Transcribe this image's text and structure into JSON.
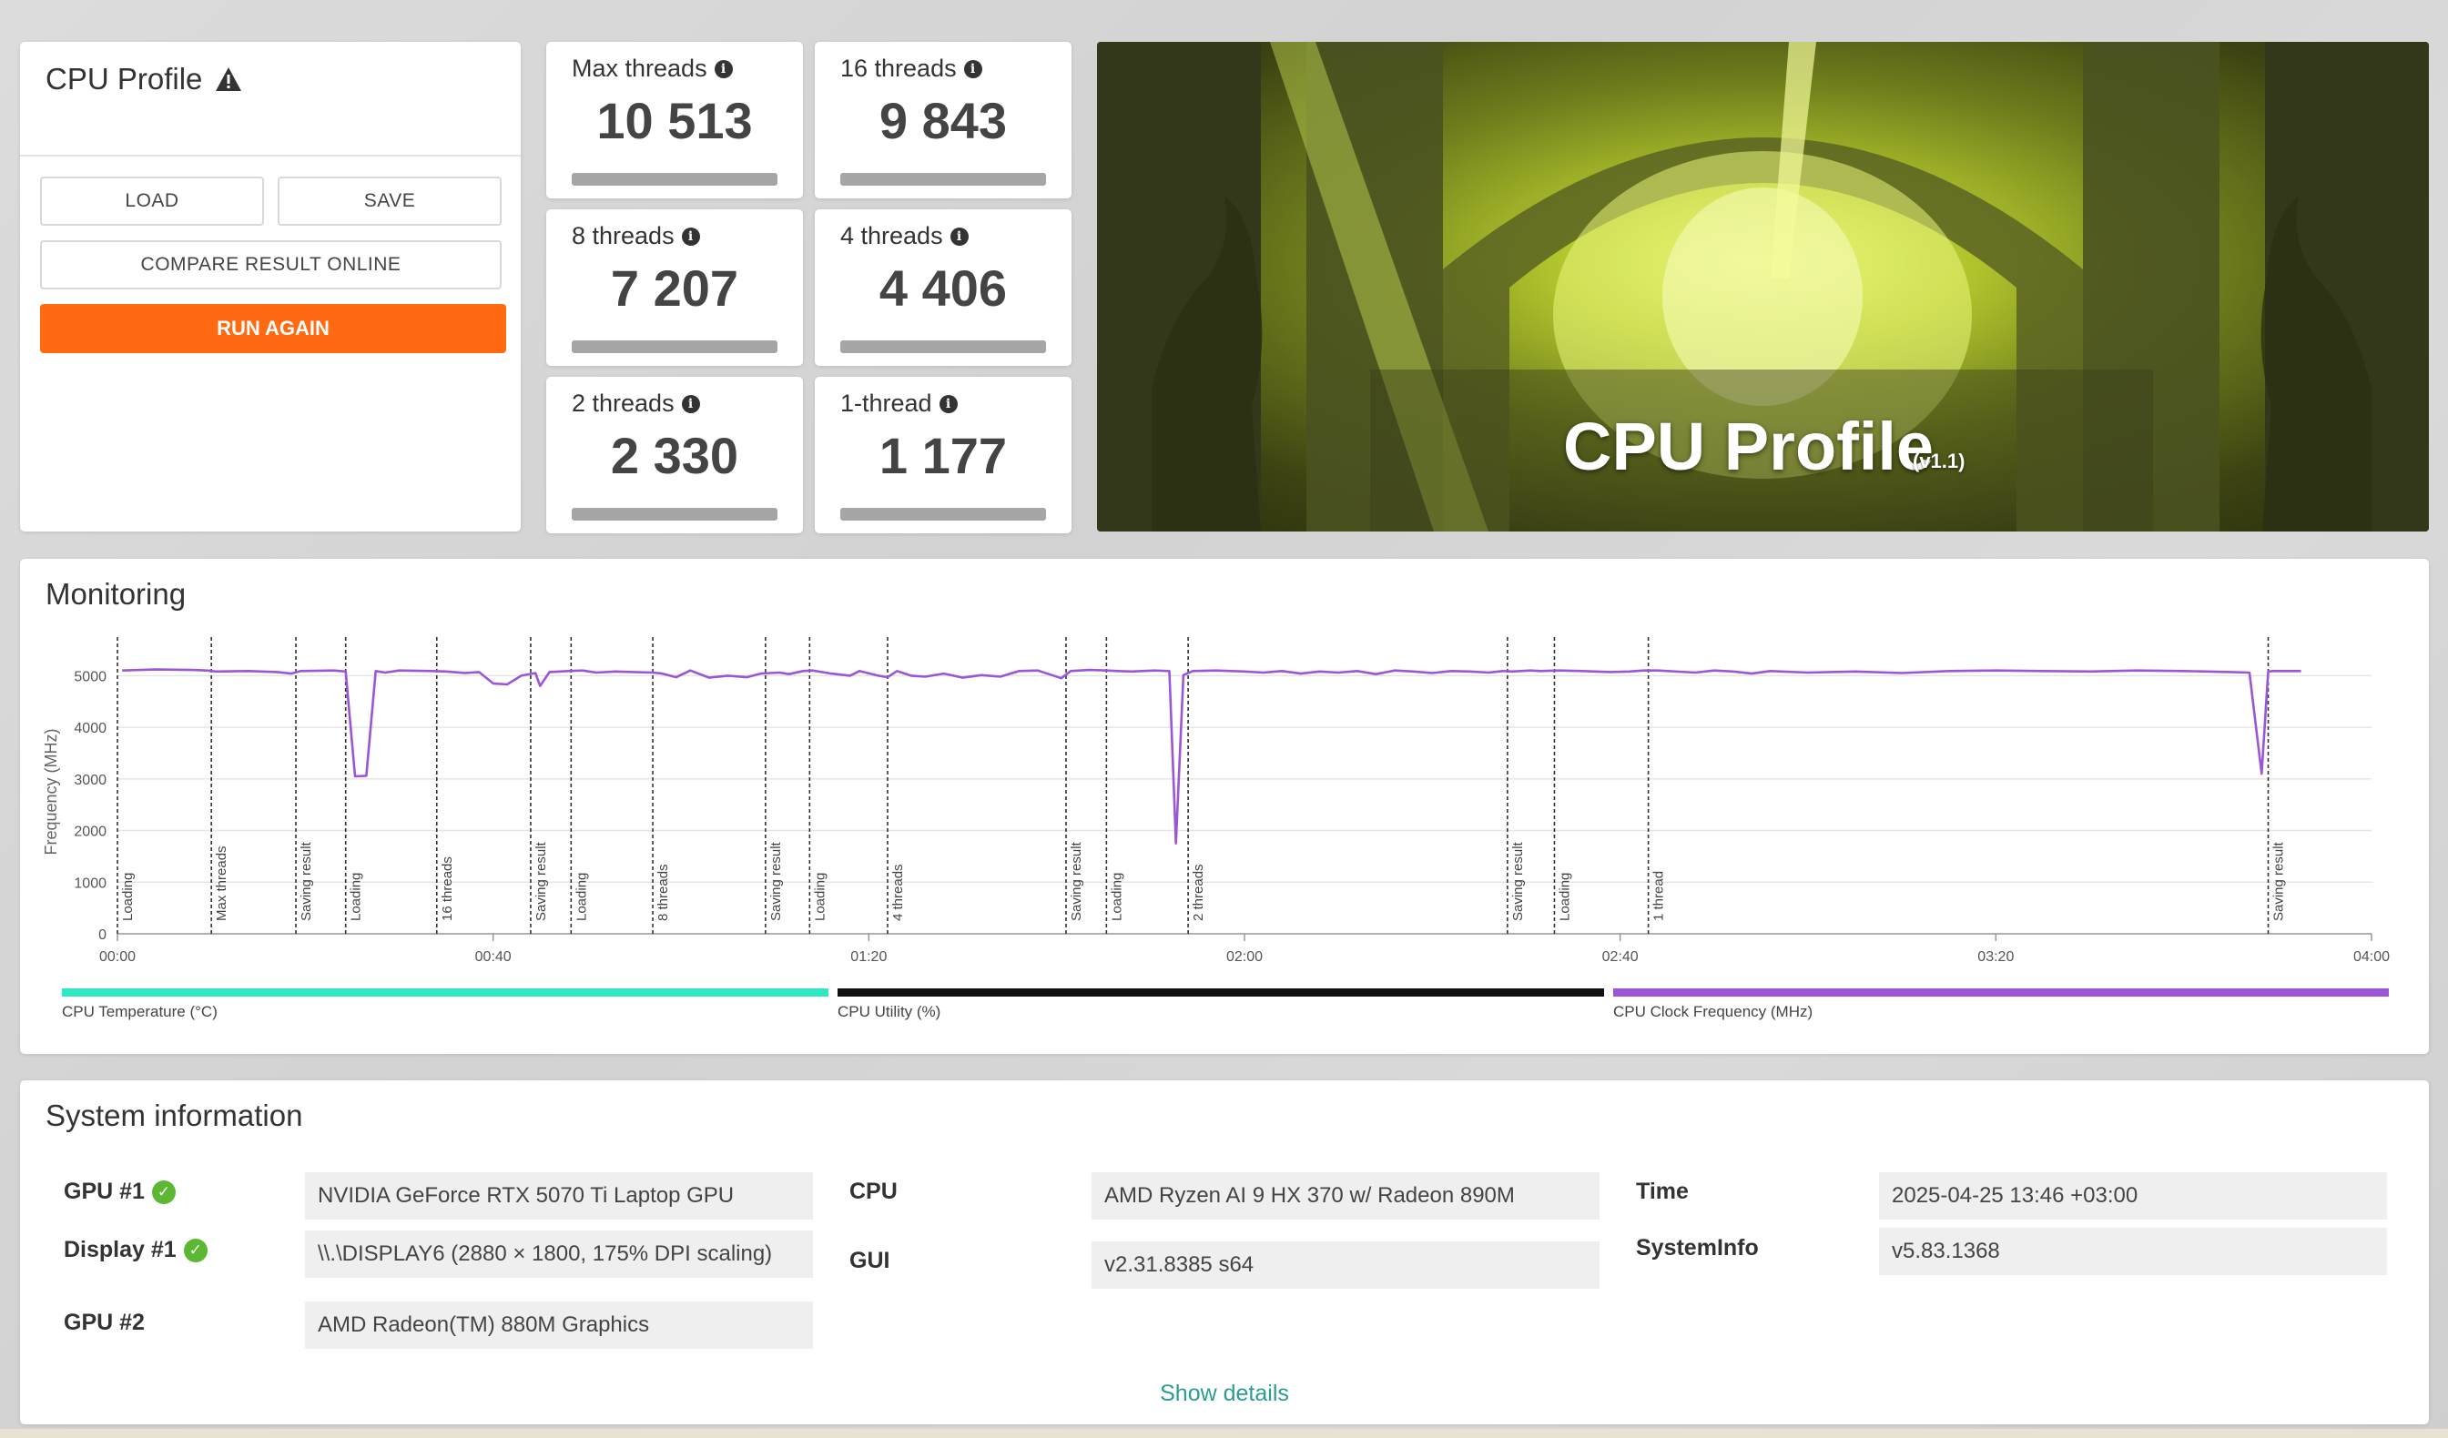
{
  "profile_card": {
    "title": "CPU Profile",
    "warning_icon": "warning-triangle-icon",
    "load_label": "LOAD",
    "save_label": "SAVE",
    "compare_label": "COMPARE RESULT ONLINE",
    "run_again_label": "RUN AGAIN",
    "accent_color": "#ff6a13"
  },
  "scores": [
    {
      "label": "Max threads",
      "value": "10 513"
    },
    {
      "label": "16 threads",
      "value": "9 843"
    },
    {
      "label": "8 threads",
      "value": "7 207"
    },
    {
      "label": "4 threads",
      "value": "4 406"
    },
    {
      "label": "2 threads",
      "value": "2 330"
    },
    {
      "label": "1-thread",
      "value": "1 177"
    }
  ],
  "hero": {
    "title": "CPU Profile",
    "version": "(v1.1)"
  },
  "monitoring": {
    "title": "Monitoring",
    "legend": [
      {
        "label": "CPU Temperature (°C)",
        "color": "#2ee8c4"
      },
      {
        "label": "CPU Utility (%)",
        "color": "#111111"
      },
      {
        "label": "CPU Clock Frequency (MHz)",
        "color": "#9b55d6"
      }
    ]
  },
  "chart_data": {
    "type": "line",
    "ylabel": "Frequency (MHz)",
    "xlabel": "",
    "ylim": [
      0,
      5500
    ],
    "xlim": [
      0,
      240
    ],
    "y_ticks": [
      0,
      1000,
      2000,
      3000,
      4000,
      5000
    ],
    "x_ticks": [
      {
        "value": 0,
        "label": "00:00"
      },
      {
        "value": 40,
        "label": "00:40"
      },
      {
        "value": 80,
        "label": "01:20"
      },
      {
        "value": 120,
        "label": "02:00"
      },
      {
        "value": 160,
        "label": "02:40"
      },
      {
        "value": 200,
        "label": "03:20"
      },
      {
        "value": 240,
        "label": "04:00"
      }
    ],
    "grid": true,
    "markers": [
      {
        "t": 0,
        "label": "Loading"
      },
      {
        "t": 10,
        "label": "Max threads"
      },
      {
        "t": 19,
        "label": "Saving result"
      },
      {
        "t": 24.3,
        "label": "Loading"
      },
      {
        "t": 34,
        "label": "16 threads"
      },
      {
        "t": 44,
        "label": "Saving result"
      },
      {
        "t": 48.3,
        "label": "Loading"
      },
      {
        "t": 57,
        "label": "8 threads"
      },
      {
        "t": 69,
        "label": "Saving result"
      },
      {
        "t": 73.7,
        "label": "Loading"
      },
      {
        "t": 82,
        "label": "4 threads"
      },
      {
        "t": 101,
        "label": "Saving result"
      },
      {
        "t": 105.3,
        "label": "Loading"
      },
      {
        "t": 114,
        "label": "2 threads"
      },
      {
        "t": 148,
        "label": "Saving result"
      },
      {
        "t": 153,
        "label": "Loading"
      },
      {
        "t": 163,
        "label": "1 thread"
      },
      {
        "t": 229,
        "label": "Saving result"
      }
    ],
    "series": [
      {
        "color": "#9b55d6",
        "x": [
          0.5,
          4,
          8,
          9.5,
          10.5,
          14,
          17,
          18.5,
          19.5,
          23,
          24.3,
          25.3,
          26.5,
          27.5,
          28.5,
          30,
          33.5,
          35,
          37,
          38.5,
          40,
          41.5,
          43,
          44.5,
          45,
          46,
          48,
          49.5,
          51,
          53,
          55,
          57,
          58,
          59.5,
          61,
          63,
          65,
          67,
          68.5,
          69.5,
          70.5,
          71.5,
          73,
          74,
          76,
          78,
          79,
          81,
          82,
          83,
          84.5,
          86,
          88,
          90,
          92,
          94,
          96,
          98,
          100.5,
          101.5,
          103.5,
          105.3,
          106.5,
          108,
          110.5,
          112,
          112.7,
          113.5,
          114.5,
          117,
          120,
          122,
          124,
          126,
          128,
          130,
          132,
          134,
          136,
          138,
          140,
          142,
          144,
          146,
          147.5,
          148.5,
          150.5,
          151.5,
          153.5,
          156,
          159,
          161,
          162.5,
          164,
          168,
          170,
          172,
          174,
          176,
          180,
          185,
          190,
          195,
          200,
          205,
          210,
          215,
          220,
          225,
          227,
          228.3,
          229,
          229.5,
          232.5
        ],
        "y": [
          5100,
          5120,
          5110,
          5100,
          5080,
          5090,
          5070,
          5040,
          5090,
          5100,
          5080,
          3050,
          3060,
          5090,
          5060,
          5100,
          5090,
          5080,
          5050,
          5070,
          4850,
          4830,
          5000,
          5050,
          4800,
          5070,
          5090,
          5100,
          5060,
          5080,
          5070,
          5060,
          5040,
          4970,
          5100,
          4960,
          5000,
          4970,
          5040,
          5050,
          5060,
          5030,
          5090,
          5100,
          5040,
          5000,
          5090,
          5000,
          4970,
          5090,
          5000,
          4980,
          5040,
          4960,
          5010,
          4980,
          5090,
          5100,
          4950,
          5090,
          5110,
          5100,
          5090,
          5080,
          5100,
          5090,
          1750,
          5010,
          5090,
          5100,
          5080,
          5060,
          5090,
          5040,
          5080,
          5060,
          5090,
          5030,
          5100,
          5080,
          5050,
          5090,
          5080,
          5060,
          5090,
          5080,
          5100,
          5090,
          5100,
          5090,
          5070,
          5080,
          5100,
          5100,
          5060,
          5100,
          5080,
          5040,
          5090,
          5060,
          5080,
          5050,
          5090,
          5100,
          5090,
          5080,
          5100,
          5090,
          5070,
          5060,
          3100,
          5080,
          5090,
          5090
        ]
      }
    ]
  },
  "system_info": {
    "title": "System information",
    "rows": [
      {
        "label": "GPU #1",
        "value": "NVIDIA GeForce RTX 5070 Ti Laptop GPU",
        "check": true
      },
      {
        "label": "Display #1",
        "value": "\\\\.\\DISPLAY6 (2880 × 1800, 175% DPI scaling)",
        "check": true
      },
      {
        "label": "GPU #2",
        "value": "AMD Radeon(TM) 880M Graphics",
        "check": false
      },
      {
        "label": "CPU",
        "value": "AMD Ryzen AI 9 HX 370 w/ Radeon 890M"
      },
      {
        "label": "GUI",
        "value": "v2.31.8385 s64"
      },
      {
        "label": "Time",
        "value": "2025-04-25 13:46 +03:00"
      },
      {
        "label": "SystemInfo",
        "value": "v5.83.1368"
      }
    ],
    "show_details_label": "Show details",
    "check_icon": "check-circle-icon",
    "check_color": "#5cb832"
  }
}
